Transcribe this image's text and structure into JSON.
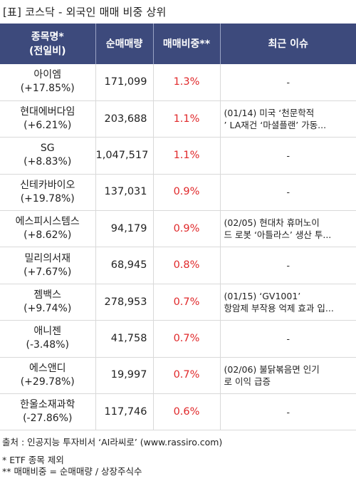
{
  "title": "[표] 코스닥 - 외국인 매매 비중 상위",
  "columns": {
    "name_line1": "종목명*",
    "name_line2": "(전일비)",
    "volume": "순매매량",
    "ratio": "매매비중**",
    "issue": "최근 이슈"
  },
  "rows": [
    {
      "name": "아이엠",
      "change": "(+17.85%)",
      "volume": "171,099",
      "ratio": "1.3%",
      "issue1": "-",
      "issue2": ""
    },
    {
      "name": "현대에버다임",
      "change": "(+6.21%)",
      "volume": "203,688",
      "ratio": "1.1%",
      "issue1": "(01/14) 미국 ‘천문학적",
      "issue2": "’ LA재건 ‘마셜플랜’ 가동..."
    },
    {
      "name": "SG",
      "change": "(+8.83%)",
      "volume": "1,047,517",
      "ratio": "1.1%",
      "issue1": "-",
      "issue2": ""
    },
    {
      "name": "신테카바이오",
      "change": "(+19.78%)",
      "volume": "137,031",
      "ratio": "0.9%",
      "issue1": "-",
      "issue2": ""
    },
    {
      "name": "에스피시스템스",
      "change": "(+8.62%)",
      "volume": "94,179",
      "ratio": "0.9%",
      "issue1": "(02/05) 현대차 휴머노이",
      "issue2": "드 로봇 ‘아틀라스’ 생산 투..."
    },
    {
      "name": "밀리의서재",
      "change": "(+7.67%)",
      "volume": "68,945",
      "ratio": "0.8%",
      "issue1": "-",
      "issue2": ""
    },
    {
      "name": "젬백스",
      "change": "(+9.74%)",
      "volume": "278,953",
      "ratio": "0.7%",
      "issue1": "(01/15) ‘GV1001’",
      "issue2": "항암제 부작용 억제 효과 입..."
    },
    {
      "name": "애니젠",
      "change": "(-3.48%)",
      "volume": "41,758",
      "ratio": "0.7%",
      "issue1": "-",
      "issue2": ""
    },
    {
      "name": "에스앤디",
      "change": "(+29.78%)",
      "volume": "19,997",
      "ratio": "0.7%",
      "issue1": "(02/06) 불닭볶음면 인기",
      "issue2": "로 이익 급증"
    },
    {
      "name": "한울소재과학",
      "change": "(-27.86%)",
      "volume": "117,746",
      "ratio": "0.6%",
      "issue1": "-",
      "issue2": ""
    }
  ],
  "footer": {
    "source": "출처 : 인공지능 투자비서 ‘AI라씨로’ (www.rassiro.com)",
    "note1": "* ETF 종목 제외",
    "note2": "** 매매비중 = 순매매량 / 상장주식수"
  },
  "colors": {
    "header_bg": "#3d4a7c",
    "ratio_text": "#e0282a"
  }
}
